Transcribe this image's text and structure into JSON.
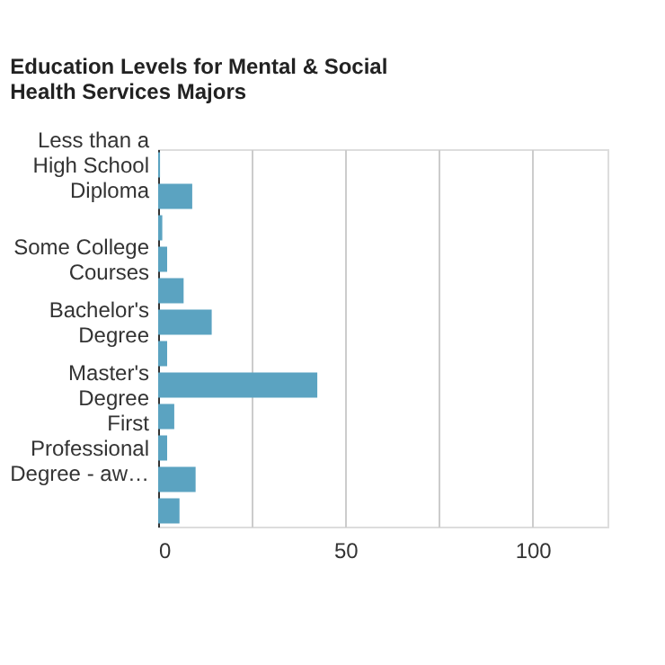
{
  "chart_data": {
    "type": "bar",
    "orientation": "horizontal",
    "title": "Education Levels for Mental & Social Health Services Majors",
    "categories": [
      "Less than a High School Diploma",
      null,
      null,
      "Some College Courses",
      null,
      "Bachelor's Degree",
      null,
      "Master's Degree",
      null,
      "First Professional Degree - aw…",
      null,
      null
    ],
    "values": [
      0.5,
      9.1,
      1.1,
      2.4,
      6.8,
      14.3,
      2.4,
      42.5,
      4.3,
      2.4,
      10.0,
      5.7
    ],
    "color": "#5ba3c1",
    "xlim": [
      0,
      120
    ],
    "xticks": [
      0,
      {
        "value": 25,
        "label": null
      },
      50,
      {
        "value": 75,
        "label": null
      },
      100
    ],
    "grid": "x"
  }
}
